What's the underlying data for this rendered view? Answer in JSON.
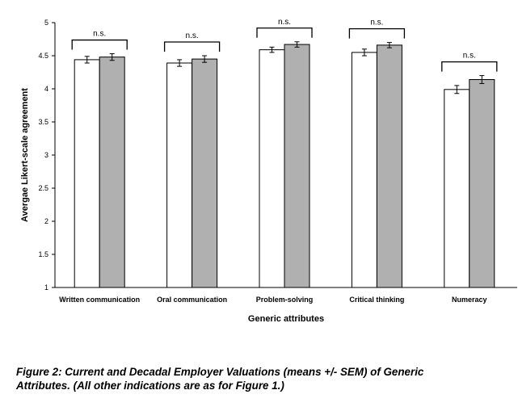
{
  "chart_data": {
    "type": "bar",
    "categories": [
      "Written communication",
      "Oral communication",
      "Problem-solving",
      "Critical thinking",
      "Numeracy"
    ],
    "series": [
      {
        "values": [
          4.44,
          4.39,
          4.59,
          4.55,
          3.99
        ],
        "errors": [
          0.05,
          0.05,
          0.04,
          0.05,
          0.06
        ],
        "color": "#ffffff"
      },
      {
        "values": [
          4.48,
          4.45,
          4.67,
          4.66,
          4.14
        ],
        "errors": [
          0.05,
          0.05,
          0.04,
          0.04,
          0.06
        ],
        "color": "#b0b0b0"
      }
    ],
    "significance": [
      "n.s.",
      "n.s.",
      "n.s.",
      "n.s.",
      "n.s."
    ],
    "xlabel": "Generic attributes",
    "ylabel": "Avergae Likert-scale agreement",
    "ylim": [
      1,
      5
    ],
    "yticks": [
      "1",
      "1.5",
      "2",
      "2.5",
      "3",
      "3.5",
      "4",
      "4.5",
      "5"
    ],
    "grid": false
  },
  "caption": {
    "line1": "Figure 2: Current and Decadal Employer Valuations (means +/- SEM) of Generic",
    "line2": "Attributes. (All other indications are as for Figure 1.)"
  }
}
